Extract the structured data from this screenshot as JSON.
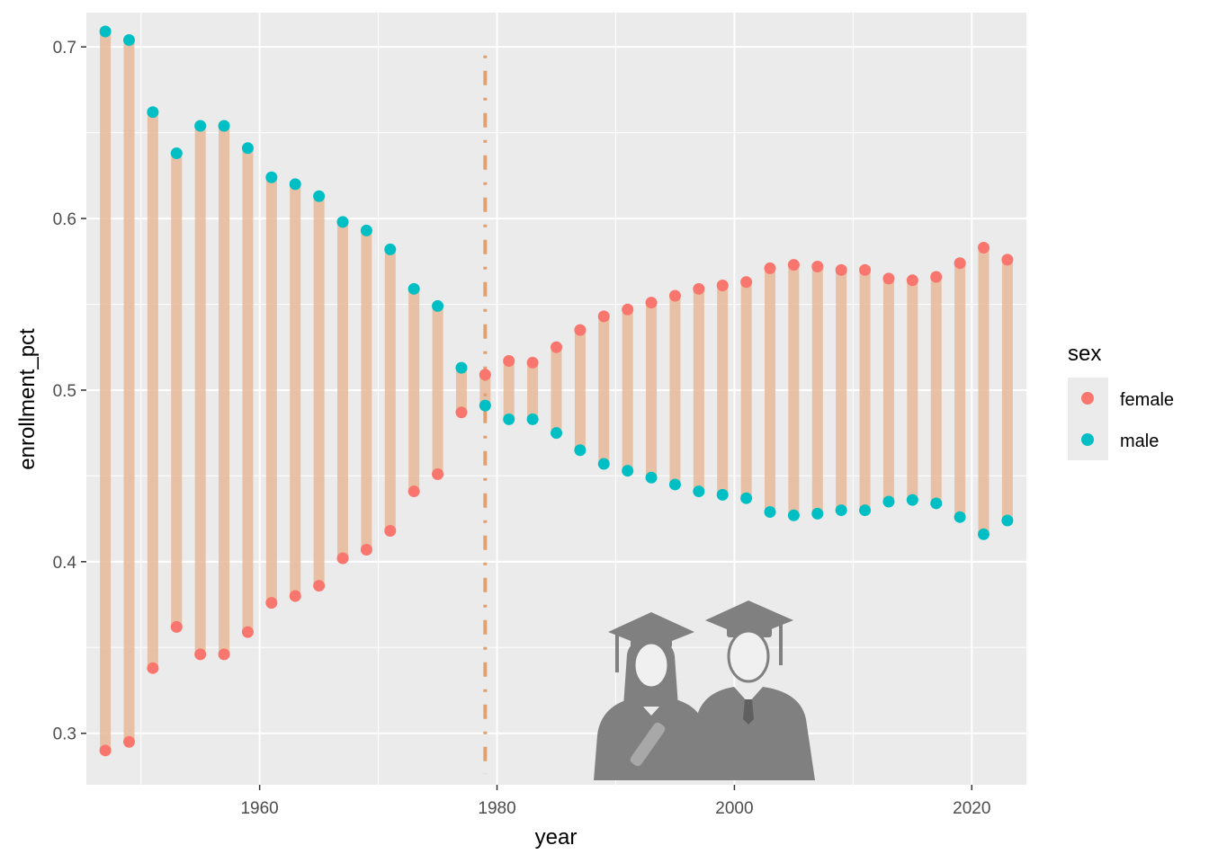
{
  "chart_data": {
    "type": "scatter",
    "xlabel": "year",
    "ylabel": "enrollment_pct",
    "xlim": [
      1945.4,
      2024.6
    ],
    "ylim": [
      0.27,
      0.72
    ],
    "x_ticks": [
      1960,
      1980,
      2000,
      2020
    ],
    "x_tick_labels": [
      "1960",
      "1980",
      "2000",
      "2020"
    ],
    "y_ticks": [
      0.3,
      0.4,
      0.5,
      0.6,
      0.7
    ],
    "y_tick_labels": [
      "0.3",
      "0.4",
      "0.5",
      "0.6",
      "0.7"
    ],
    "grid": true,
    "legend": {
      "title": "sex",
      "position": "right",
      "entries": [
        {
          "label": "female",
          "color": "#F8766D"
        },
        {
          "label": "male",
          "color": "#00BFC4"
        }
      ]
    },
    "segment_color": "#E8B999",
    "vline": {
      "x": 1979,
      "color": "#E0A070",
      "style": "dashdot"
    },
    "x": [
      1947,
      1949,
      1951,
      1953,
      1955,
      1957,
      1959,
      1961,
      1963,
      1965,
      1967,
      1969,
      1971,
      1973,
      1975,
      1977,
      1979,
      1981,
      1983,
      1985,
      1987,
      1989,
      1991,
      1993,
      1995,
      1997,
      1999,
      2001,
      2003,
      2005,
      2007,
      2009,
      2011,
      2013,
      2015,
      2017,
      2019,
      2021,
      2023
    ],
    "series": [
      {
        "name": "female",
        "color": "#F8766D",
        "values": [
          0.29,
          0.295,
          0.338,
          0.362,
          0.346,
          0.346,
          0.359,
          0.376,
          0.38,
          0.386,
          0.402,
          0.407,
          0.418,
          0.441,
          0.451,
          0.487,
          0.509,
          0.517,
          0.516,
          0.525,
          0.535,
          0.543,
          0.547,
          0.551,
          0.555,
          0.559,
          0.561,
          0.563,
          0.571,
          0.573,
          0.572,
          0.57,
          0.57,
          0.565,
          0.564,
          0.566,
          0.574,
          0.583,
          0.576
        ]
      },
      {
        "name": "male",
        "color": "#00BFC4",
        "values": [
          0.709,
          0.704,
          0.662,
          0.638,
          0.654,
          0.654,
          0.641,
          0.624,
          0.62,
          0.613,
          0.598,
          0.593,
          0.582,
          0.559,
          0.549,
          0.513,
          0.491,
          0.483,
          0.483,
          0.475,
          0.465,
          0.457,
          0.453,
          0.449,
          0.445,
          0.441,
          0.439,
          0.437,
          0.429,
          0.427,
          0.428,
          0.43,
          0.43,
          0.435,
          0.436,
          0.434,
          0.426,
          0.416,
          0.424
        ]
      }
    ]
  }
}
